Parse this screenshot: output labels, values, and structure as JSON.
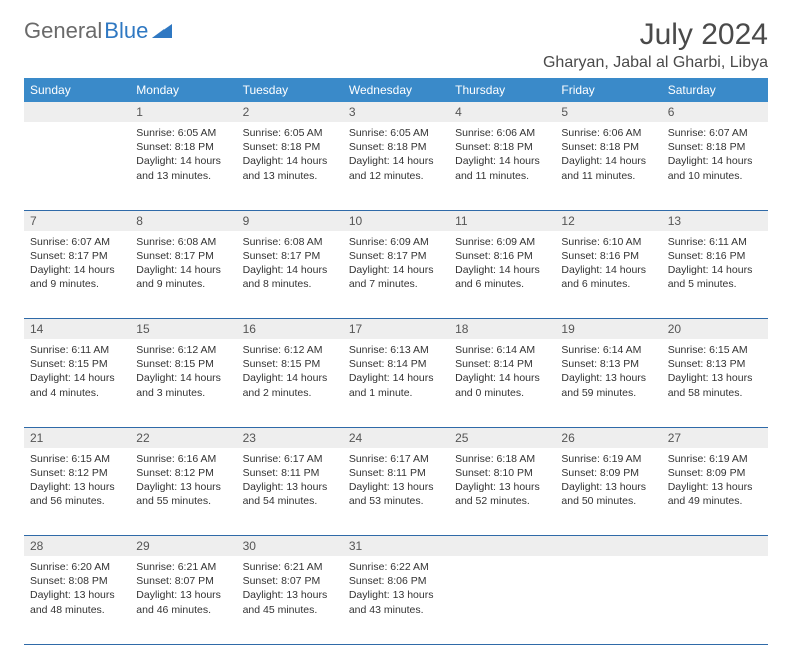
{
  "logo": {
    "word1": "General",
    "word2": "Blue",
    "shape_color": "#2f78c2",
    "word1_color": "#6a6a6a"
  },
  "title": "July 2024",
  "location": "Gharyan, Jabal al Gharbi, Libya",
  "colors": {
    "header_bg": "#3a8ac9",
    "header_text": "#ffffff",
    "daynum_bg": "#eeeeee",
    "daynum_text": "#555555",
    "body_text": "#333333",
    "border": "#2f6aa8"
  },
  "fonts": {
    "title_size": 30,
    "location_size": 16,
    "weekday_size": 12,
    "daynum_size": 12,
    "body_size": 10.5
  },
  "weekdays": [
    "Sunday",
    "Monday",
    "Tuesday",
    "Wednesday",
    "Thursday",
    "Friday",
    "Saturday"
  ],
  "start_offset": 1,
  "days": [
    {
      "n": "1",
      "sunrise": "6:05 AM",
      "sunset": "8:18 PM",
      "daylight": "14 hours and 13 minutes."
    },
    {
      "n": "2",
      "sunrise": "6:05 AM",
      "sunset": "8:18 PM",
      "daylight": "14 hours and 13 minutes."
    },
    {
      "n": "3",
      "sunrise": "6:05 AM",
      "sunset": "8:18 PM",
      "daylight": "14 hours and 12 minutes."
    },
    {
      "n": "4",
      "sunrise": "6:06 AM",
      "sunset": "8:18 PM",
      "daylight": "14 hours and 11 minutes."
    },
    {
      "n": "5",
      "sunrise": "6:06 AM",
      "sunset": "8:18 PM",
      "daylight": "14 hours and 11 minutes."
    },
    {
      "n": "6",
      "sunrise": "6:07 AM",
      "sunset": "8:18 PM",
      "daylight": "14 hours and 10 minutes."
    },
    {
      "n": "7",
      "sunrise": "6:07 AM",
      "sunset": "8:17 PM",
      "daylight": "14 hours and 9 minutes."
    },
    {
      "n": "8",
      "sunrise": "6:08 AM",
      "sunset": "8:17 PM",
      "daylight": "14 hours and 9 minutes."
    },
    {
      "n": "9",
      "sunrise": "6:08 AM",
      "sunset": "8:17 PM",
      "daylight": "14 hours and 8 minutes."
    },
    {
      "n": "10",
      "sunrise": "6:09 AM",
      "sunset": "8:17 PM",
      "daylight": "14 hours and 7 minutes."
    },
    {
      "n": "11",
      "sunrise": "6:09 AM",
      "sunset": "8:16 PM",
      "daylight": "14 hours and 6 minutes."
    },
    {
      "n": "12",
      "sunrise": "6:10 AM",
      "sunset": "8:16 PM",
      "daylight": "14 hours and 6 minutes."
    },
    {
      "n": "13",
      "sunrise": "6:11 AM",
      "sunset": "8:16 PM",
      "daylight": "14 hours and 5 minutes."
    },
    {
      "n": "14",
      "sunrise": "6:11 AM",
      "sunset": "8:15 PM",
      "daylight": "14 hours and 4 minutes."
    },
    {
      "n": "15",
      "sunrise": "6:12 AM",
      "sunset": "8:15 PM",
      "daylight": "14 hours and 3 minutes."
    },
    {
      "n": "16",
      "sunrise": "6:12 AM",
      "sunset": "8:15 PM",
      "daylight": "14 hours and 2 minutes."
    },
    {
      "n": "17",
      "sunrise": "6:13 AM",
      "sunset": "8:14 PM",
      "daylight": "14 hours and 1 minute."
    },
    {
      "n": "18",
      "sunrise": "6:14 AM",
      "sunset": "8:14 PM",
      "daylight": "14 hours and 0 minutes."
    },
    {
      "n": "19",
      "sunrise": "6:14 AM",
      "sunset": "8:13 PM",
      "daylight": "13 hours and 59 minutes."
    },
    {
      "n": "20",
      "sunrise": "6:15 AM",
      "sunset": "8:13 PM",
      "daylight": "13 hours and 58 minutes."
    },
    {
      "n": "21",
      "sunrise": "6:15 AM",
      "sunset": "8:12 PM",
      "daylight": "13 hours and 56 minutes."
    },
    {
      "n": "22",
      "sunrise": "6:16 AM",
      "sunset": "8:12 PM",
      "daylight": "13 hours and 55 minutes."
    },
    {
      "n": "23",
      "sunrise": "6:17 AM",
      "sunset": "8:11 PM",
      "daylight": "13 hours and 54 minutes."
    },
    {
      "n": "24",
      "sunrise": "6:17 AM",
      "sunset": "8:11 PM",
      "daylight": "13 hours and 53 minutes."
    },
    {
      "n": "25",
      "sunrise": "6:18 AM",
      "sunset": "8:10 PM",
      "daylight": "13 hours and 52 minutes."
    },
    {
      "n": "26",
      "sunrise": "6:19 AM",
      "sunset": "8:09 PM",
      "daylight": "13 hours and 50 minutes."
    },
    {
      "n": "27",
      "sunrise": "6:19 AM",
      "sunset": "8:09 PM",
      "daylight": "13 hours and 49 minutes."
    },
    {
      "n": "28",
      "sunrise": "6:20 AM",
      "sunset": "8:08 PM",
      "daylight": "13 hours and 48 minutes."
    },
    {
      "n": "29",
      "sunrise": "6:21 AM",
      "sunset": "8:07 PM",
      "daylight": "13 hours and 46 minutes."
    },
    {
      "n": "30",
      "sunrise": "6:21 AM",
      "sunset": "8:07 PM",
      "daylight": "13 hours and 45 minutes."
    },
    {
      "n": "31",
      "sunrise": "6:22 AM",
      "sunset": "8:06 PM",
      "daylight": "13 hours and 43 minutes."
    }
  ],
  "labels": {
    "sunrise": "Sunrise:",
    "sunset": "Sunset:",
    "daylight": "Daylight:"
  }
}
